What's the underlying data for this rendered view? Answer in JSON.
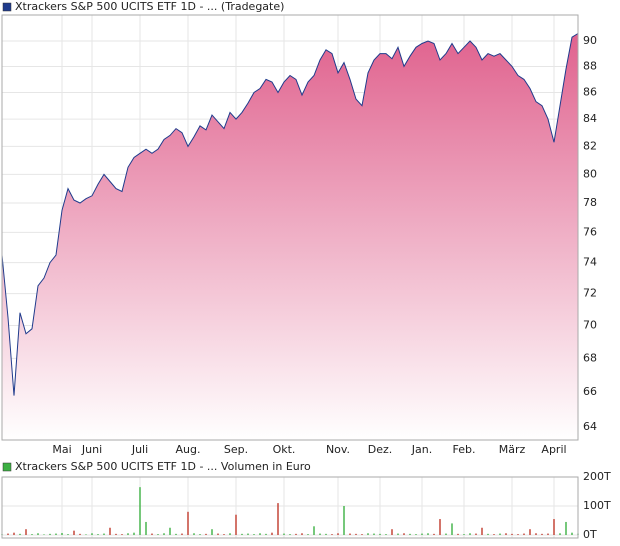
{
  "chart_data": [
    {
      "type": "area",
      "title": "Xtrackers S&P 500 UCITS ETF 1D - ... (Tradegate)",
      "color": "#1f3b8c",
      "fill_color": "#e0628e",
      "log_scale": true,
      "grid": true,
      "values": [
        74.5,
        70.5,
        65.8,
        70.8,
        69.5,
        69.8,
        72.5,
        73.0,
        74.0,
        74.5,
        77.5,
        79.0,
        78.2,
        78.0,
        78.3,
        78.5,
        79.3,
        80.0,
        79.5,
        79.0,
        78.8,
        80.5,
        81.2,
        81.5,
        81.8,
        81.5,
        81.8,
        82.5,
        82.8,
        83.3,
        83.0,
        82.0,
        82.7,
        83.5,
        83.2,
        84.3,
        83.8,
        83.3,
        84.5,
        84.0,
        84.5,
        85.2,
        86.0,
        86.3,
        87.0,
        86.8,
        86.0,
        86.8,
        87.3,
        87.0,
        85.8,
        86.8,
        87.3,
        88.5,
        89.3,
        89.0,
        87.5,
        88.3,
        87.0,
        85.5,
        85.0,
        87.5,
        88.5,
        89.0,
        89.0,
        88.6,
        89.5,
        88.0,
        88.8,
        89.5,
        89.8,
        90.0,
        89.8,
        88.5,
        89.0,
        89.8,
        89.0,
        89.5,
        90.0,
        89.5,
        88.5,
        89.0,
        88.8,
        89.0,
        88.5,
        88.0,
        87.3,
        87.0,
        86.3,
        85.3,
        85.0,
        84.0,
        82.3,
        85.0,
        87.8,
        90.3,
        90.6
      ],
      "xticks": [
        {
          "value": 10,
          "label": "Mai"
        },
        {
          "value": 15,
          "label": "Juni"
        },
        {
          "value": 23,
          "label": "Juli"
        },
        {
          "value": 31,
          "label": "Aug."
        },
        {
          "value": 39,
          "label": "Sep."
        },
        {
          "value": 47,
          "label": "Okt."
        },
        {
          "value": 56,
          "label": "Nov."
        },
        {
          "value": 63,
          "label": "Dez."
        },
        {
          "value": 70,
          "label": "Jan."
        },
        {
          "value": 77,
          "label": "Feb."
        },
        {
          "value": 85,
          "label": "März"
        },
        {
          "value": 92,
          "label": "April"
        }
      ],
      "ylim": [
        63.27,
        92.09
      ],
      "yticks": [
        64,
        66,
        68,
        70,
        72,
        74,
        76,
        78,
        80,
        82,
        84,
        86,
        88,
        90
      ]
    },
    {
      "type": "bar",
      "title": "Xtrackers S&P 500 UCITS ETF 1D - ... Volumen in Euro",
      "color": "#3cb043",
      "up_color": "#3cb043",
      "down_color": "#c0392b",
      "values": [
        3000,
        5000,
        8000,
        4000,
        20000,
        3000,
        6000,
        2000,
        4000,
        5000,
        7000,
        3000,
        15000,
        4000,
        2000,
        6000,
        3000,
        5000,
        25000,
        4000,
        3000,
        6000,
        8000,
        165000,
        45000,
        5000,
        3000,
        6000,
        25000,
        4000,
        5000,
        80000,
        6000,
        3000,
        4000,
        20000,
        5000,
        3000,
        6000,
        70000,
        4000,
        5000,
        3000,
        6000,
        4000,
        8000,
        110000,
        5000,
        3000,
        4000,
        6000,
        3000,
        30000,
        5000,
        4000,
        3000,
        6000,
        100000,
        5000,
        4000,
        3000,
        6000,
        5000,
        4000,
        3000,
        20000,
        5000,
        6000,
        4000,
        3000,
        5000,
        6000,
        4000,
        55000,
        5000,
        40000,
        4000,
        3000,
        6000,
        5000,
        25000,
        4000,
        3000,
        5000,
        6000,
        4000,
        3000,
        5000,
        20000,
        6000,
        4000,
        5000,
        55000,
        6000,
        45000,
        8000,
        5000
      ],
      "ylim": [
        0,
        200000
      ],
      "yticks": [
        {
          "value": 0,
          "label": "0T"
        },
        {
          "value": 100000,
          "label": "100T"
        },
        {
          "value": 200000,
          "label": "200T"
        }
      ]
    }
  ]
}
